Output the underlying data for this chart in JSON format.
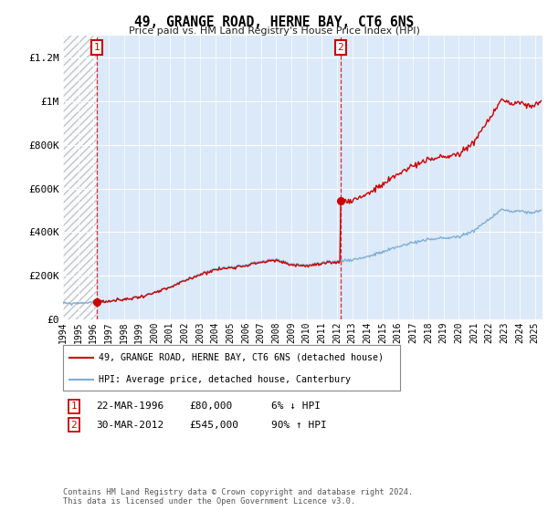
{
  "title": "49, GRANGE ROAD, HERNE BAY, CT6 6NS",
  "subtitle": "Price paid vs. HM Land Registry's House Price Index (HPI)",
  "ylim": [
    0,
    1300000
  ],
  "yticks": [
    0,
    200000,
    400000,
    600000,
    800000,
    1000000,
    1200000
  ],
  "ytick_labels": [
    "£0",
    "£200K",
    "£400K",
    "£600K",
    "£800K",
    "£1M",
    "£1.2M"
  ],
  "xlim_start": 1994.0,
  "xlim_end": 2025.5,
  "bg_color": "#dce9f8",
  "sale1_date": 1996.22,
  "sale1_price": 80000,
  "sale2_date": 2012.24,
  "sale2_price": 545000,
  "legend1": "49, GRANGE ROAD, HERNE BAY, CT6 6NS (detached house)",
  "legend2": "HPI: Average price, detached house, Canterbury",
  "note1_date": "22-MAR-1996",
  "note1_price": "£80,000",
  "note1_pct": "6% ↓ HPI",
  "note2_date": "30-MAR-2012",
  "note2_price": "£545,000",
  "note2_pct": "90% ↑ HPI",
  "footer": "Contains HM Land Registry data © Crown copyright and database right 2024.\nThis data is licensed under the Open Government Licence v3.0.",
  "hpi_color": "#7daed4",
  "price_color": "#cc0000",
  "hatch_region_end": 1996.22
}
